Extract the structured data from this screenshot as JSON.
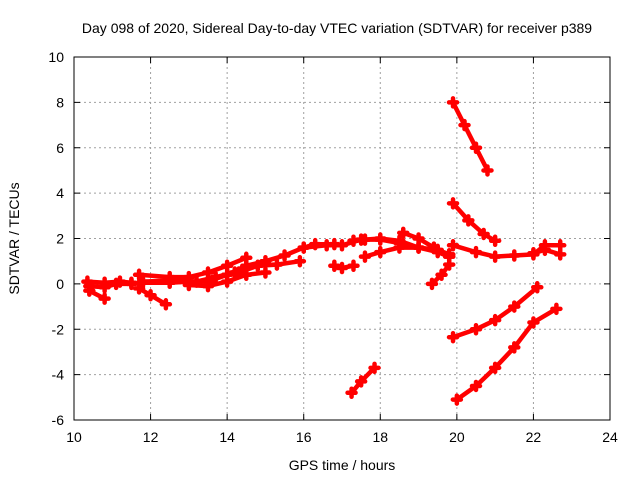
{
  "chart_data": {
    "type": "scatter",
    "title": "Day 098 of 2020, Sidereal Day-to-day VTEC variation (SDTVAR) for receiver p389",
    "xlabel": "GPS time / hours",
    "ylabel": "SDTVAR / TECUs",
    "xlim": [
      10,
      24
    ],
    "ylim": [
      -6,
      10
    ],
    "x_ticks": [
      "10",
      "12",
      "14",
      "16",
      "18",
      "20",
      "22",
      "24"
    ],
    "y_ticks": [
      "-6",
      "-4",
      "-2",
      "0",
      "2",
      "4",
      "6",
      "8",
      "10"
    ],
    "grid": true,
    "marker": "plus",
    "color": "#ff0000",
    "series": [
      {
        "name": "track-1",
        "x": [
          10.35,
          10.8,
          11.2,
          11.5
        ],
        "y": [
          0.1,
          0.05,
          0.1,
          0.05
        ]
      },
      {
        "name": "track-2",
        "x": [
          10.4,
          10.8,
          11.1,
          11.5
        ],
        "y": [
          -0.1,
          -0.15,
          0.0,
          0.0
        ]
      },
      {
        "name": "track-3",
        "x": [
          10.4,
          10.8
        ],
        "y": [
          -0.3,
          -0.65
        ]
      },
      {
        "name": "track-4",
        "x": [
          11.7,
          12.0,
          12.4
        ],
        "y": [
          -0.2,
          -0.5,
          -0.9
        ]
      },
      {
        "name": "track-5",
        "x": [
          11.7,
          12.5,
          13.0,
          13.5,
          14.0,
          14.5
        ],
        "y": [
          0.4,
          0.3,
          0.3,
          0.5,
          0.8,
          1.15
        ]
      },
      {
        "name": "track-6",
        "x": [
          11.8,
          12.5,
          13.2,
          13.7,
          14.2
        ],
        "y": [
          0.1,
          0.15,
          0.1,
          0.3,
          0.5
        ]
      },
      {
        "name": "track-7",
        "x": [
          11.8,
          12.5,
          13.0,
          13.5,
          14.0,
          14.5,
          15.0,
          15.5,
          16.0,
          16.3,
          16.8
        ],
        "y": [
          0.05,
          0.05,
          0.1,
          0.1,
          0.4,
          0.8,
          1.0,
          1.25,
          1.6,
          1.75,
          1.75
        ]
      },
      {
        "name": "track-8",
        "x": [
          13.0,
          13.5,
          14.0,
          14.5,
          15.0
        ],
        "y": [
          -0.05,
          -0.1,
          0.1,
          0.4,
          0.5
        ]
      },
      {
        "name": "track-9",
        "x": [
          14.3,
          14.8,
          15.3,
          15.9
        ],
        "y": [
          0.5,
          0.8,
          0.85,
          1.0
        ]
      },
      {
        "name": "track-10",
        "x": [
          16.0,
          16.6,
          17.0,
          17.5,
          18.0,
          18.5,
          19.0,
          19.5,
          19.8
        ],
        "y": [
          1.6,
          1.7,
          1.7,
          1.95,
          1.95,
          1.8,
          1.6,
          1.45,
          1.3
        ]
      },
      {
        "name": "track-11",
        "x": [
          16.8,
          17.0,
          17.3
        ],
        "y": [
          0.8,
          0.7,
          0.8
        ]
      },
      {
        "name": "track-12",
        "x": [
          17.3,
          17.6,
          18.0,
          18.5,
          19.0,
          19.5,
          19.8
        ],
        "y": [
          1.9,
          1.95,
          2.0,
          1.9,
          1.6,
          1.4,
          1.2
        ]
      },
      {
        "name": "track-13",
        "x": [
          17.6,
          18.0,
          18.5,
          19.0,
          19.5,
          19.8
        ],
        "y": [
          1.2,
          1.4,
          1.6,
          1.6,
          1.5,
          1.3
        ]
      },
      {
        "name": "track-14",
        "x": [
          18.6,
          19.0,
          19.4,
          19.8
        ],
        "y": [
          2.25,
          2.0,
          1.6,
          1.2
        ]
      },
      {
        "name": "track-15",
        "x": [
          19.35,
          19.6,
          19.8
        ],
        "y": [
          0.0,
          0.4,
          0.85
        ]
      },
      {
        "name": "track-16",
        "x": [
          17.25,
          17.5,
          17.85
        ],
        "y": [
          -4.8,
          -4.3,
          -3.7
        ]
      },
      {
        "name": "track-17",
        "x": [
          19.9,
          20.2,
          20.5,
          20.8
        ],
        "y": [
          8.0,
          7.0,
          6.0,
          5.0
        ]
      },
      {
        "name": "track-18",
        "x": [
          19.9,
          20.3,
          20.7,
          21.0
        ],
        "y": [
          3.55,
          2.8,
          2.2,
          1.9
        ]
      },
      {
        "name": "track-19",
        "x": [
          19.9,
          20.5,
          21.0,
          21.5,
          22.0,
          22.3,
          22.7
        ],
        "y": [
          1.7,
          1.4,
          1.2,
          1.25,
          1.3,
          1.7,
          1.7
        ]
      },
      {
        "name": "track-20",
        "x": [
          22.0,
          22.3,
          22.7
        ],
        "y": [
          1.35,
          1.5,
          1.3
        ]
      },
      {
        "name": "track-21",
        "x": [
          19.9,
          20.5,
          21.0,
          21.5,
          22.1
        ],
        "y": [
          -2.35,
          -2.0,
          -1.6,
          -1.0,
          -0.15
        ]
      },
      {
        "name": "track-22",
        "x": [
          20.0,
          20.5,
          21.0,
          21.5,
          22.0,
          22.6
        ],
        "y": [
          -5.1,
          -4.5,
          -3.7,
          -2.8,
          -1.7,
          -1.1
        ]
      }
    ]
  }
}
